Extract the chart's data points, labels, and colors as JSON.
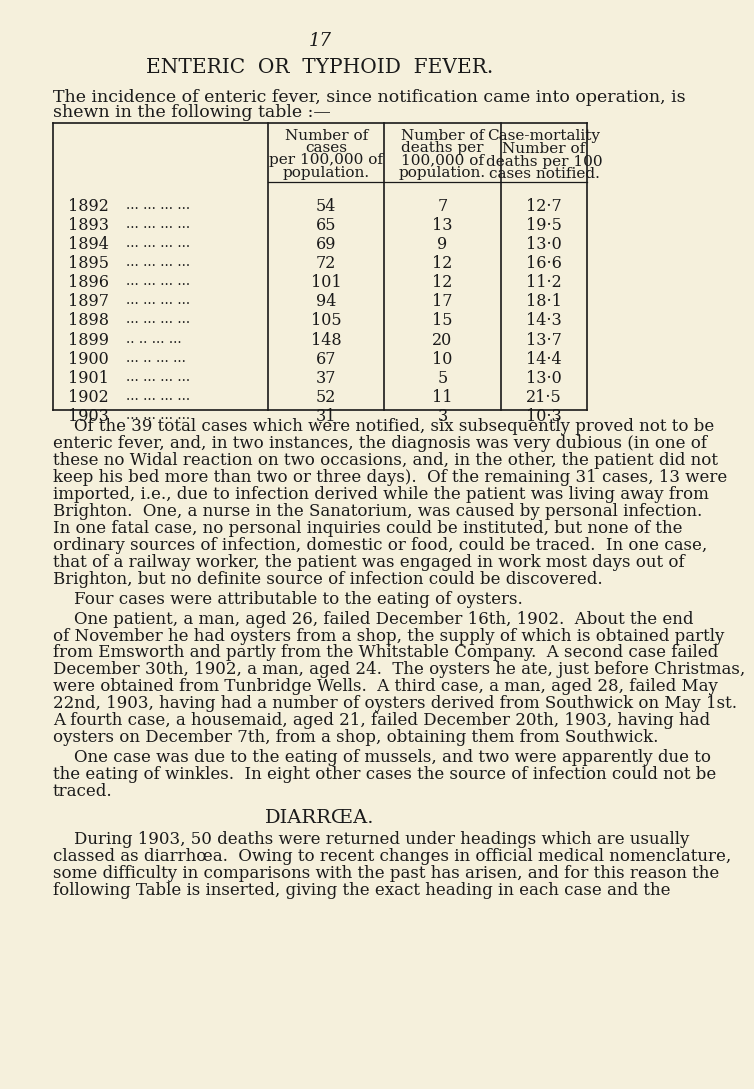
{
  "bg_color": "#f5f0dc",
  "text_color": "#1a1a1a",
  "page_number": "17",
  "title": "ENTERIC  OR  TYPHOID  FEVER.",
  "table_years": [
    "1892",
    "1893",
    "1894",
    "1895",
    "1896",
    "1897",
    "1898",
    "1899",
    "1900",
    "1901",
    "1902",
    "1903"
  ],
  "table_col1": [
    54,
    65,
    69,
    72,
    101,
    94,
    105,
    148,
    67,
    37,
    52,
    31
  ],
  "table_col2": [
    7,
    13,
    9,
    12,
    12,
    17,
    15,
    20,
    10,
    5,
    11,
    3
  ],
  "table_col3": [
    "12·7",
    "19·5",
    "13·0",
    "16·6",
    "11·2",
    "18·1",
    "14·3",
    "13·7",
    "14·4",
    "13·0",
    "21·5",
    "10·3"
  ],
  "dots_patterns": [
    "... ... ... ...",
    "... ... ... ...",
    "... ... ... ...",
    "... ... ... ...",
    "... ... ... ...",
    "... ... ... ...",
    "... ... ... ...",
    ".. .. ... ...",
    "... .. ... ...",
    "... ... ... ...",
    "... ... ... ...",
    "... ... ... ..."
  ],
  "para1_lines": [
    "    Of the 39 total cases which were notified, six subsequently proved not to be",
    "enteric fever, and, in two instances, the diagnosis was very dubious (in one of",
    "these no Widal reaction on two occasions, and, in the other, the patient did not",
    "keep his bed more than two or three days).  Of the remaining 31 cases, 13 were",
    "imported, i.e., due to infection derived while the patient was living away from",
    "Brighton.  One, a nurse in the Sanatorium, was caused by personal infection.",
    "In one fatal case, no personal inquiries could be instituted, but none of the",
    "ordinary sources of infection, domestic or food, could be traced.  In one case,",
    "that of a railway worker, the patient was engaged in work most days out of",
    "Brighton, but no definite source of infection could be discovered."
  ],
  "para2": "    Four cases were attributable to the eating of oysters.",
  "para3_lines": [
    "    One patient, a man, aged 26, failed December 16th, 1902.  About the end",
    "of November he had oysters from a shop, the supply of which is obtained partly",
    "from Emsworth and partly from the Whitstable Company.  A second case failed",
    "December 30th, 1902, a man, aged 24.  The oysters he ate, just before Christmas,",
    "were obtained from Tunbridge Wells.  A third case, a man, aged 28, failed May",
    "22nd, 1903, having had a number of oysters derived from Southwick on May 1st.",
    "A fourth case, a housemaid, aged 21, failed December 20th, 1903, having had",
    "oysters on December 7th, from a shop, obtaining them from Southwick."
  ],
  "para4_lines": [
    "    One case was due to the eating of mussels, and two were apparently due to",
    "the eating of winkles.  In eight other cases the source of infection could not be",
    "traced."
  ],
  "diarrhoea_heading": "DIARRŒA.",
  "para6_lines": [
    "    During 1903, 50 deaths were returned under headings which are usually",
    "classed as diarrhœa.  Owing to recent changes in official medical nomenclature,",
    "some difficulty in comparisons with the past has arisen, and for this reason the",
    "following Table is inserted, giving the exact heading in each case and the"
  ]
}
